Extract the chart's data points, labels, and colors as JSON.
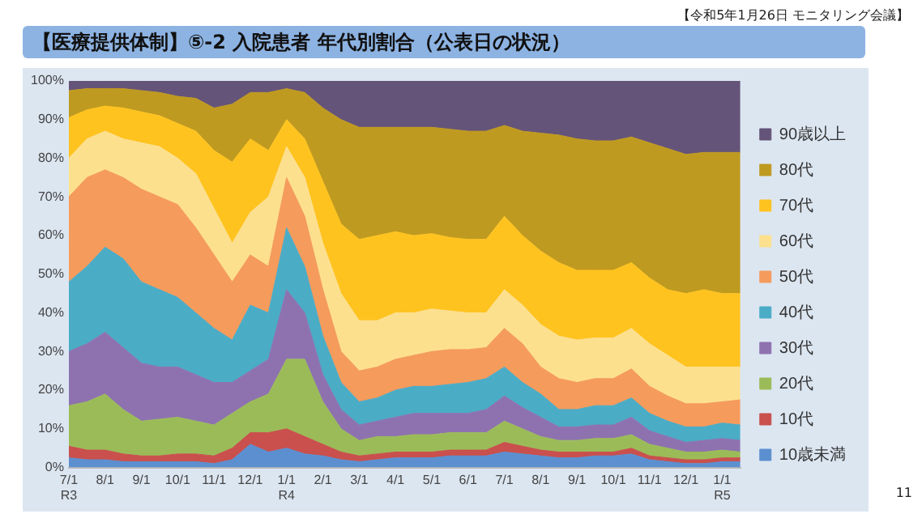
{
  "chart_data": {
    "type": "area",
    "stacked": true,
    "title": "【医療提供体制】⑤-2 入院患者 年代別割合（公表日の状況）",
    "annotations": [
      "【令和5年1月26日 モニタリング会議】",
      "11"
    ],
    "categories": [
      "7/1\nR3",
      null,
      "8/1",
      null,
      "9/1",
      null,
      "10/1",
      null,
      "11/1",
      null,
      "12/1",
      null,
      "1/1\nR4",
      null,
      "2/1",
      null,
      "3/1",
      null,
      "4/1",
      null,
      "5/1",
      null,
      "6/1",
      null,
      "7/1",
      null,
      "8/1",
      null,
      "9/1",
      null,
      "10/1",
      null,
      "11/1",
      null,
      "12/1",
      null,
      "1/1\nR5",
      null
    ],
    "ylim": [
      0,
      100
    ],
    "yticks": [
      {
        "value": 0,
        "label": "0%"
      },
      {
        "value": 10,
        "label": "10%"
      },
      {
        "value": 20,
        "label": "20%"
      },
      {
        "value": 30,
        "label": "30%"
      },
      {
        "value": 40,
        "label": "40%"
      },
      {
        "value": 50,
        "label": "50%"
      },
      {
        "value": 60,
        "label": "60%"
      },
      {
        "value": 70,
        "label": "70%"
      },
      {
        "value": 80,
        "label": "80%"
      },
      {
        "value": 90,
        "label": "90%"
      },
      {
        "value": 100,
        "label": "100%"
      }
    ],
    "grid": false,
    "legend": "right",
    "marker": "none",
    "series": [
      {
        "name": "10歳未満",
        "color": "#5b8fd0",
        "values": [
          2.5,
          2,
          2,
          1.5,
          1.5,
          1.5,
          1.5,
          1.5,
          1,
          2,
          6,
          4,
          5,
          3.5,
          3,
          2,
          1.5,
          2,
          2.5,
          2.5,
          2.5,
          3,
          3,
          3,
          4,
          3.5,
          3,
          2.5,
          2.5,
          3,
          3,
          3.5,
          2,
          1.5,
          1,
          1,
          1.5,
          1.5
        ]
      },
      {
        "name": "10代",
        "color": "#c9504d",
        "values": [
          3,
          2.5,
          2.5,
          2,
          1.5,
          1.5,
          2,
          2,
          2,
          3,
          3,
          5,
          5,
          4.5,
          3,
          2,
          1.5,
          1.5,
          1.5,
          1.5,
          1.5,
          1.5,
          1.5,
          1.5,
          2.5,
          2,
          1.5,
          1.5,
          1.5,
          1,
          1,
          1.5,
          1,
          1,
          1,
          1,
          1,
          1
        ]
      },
      {
        "name": "20代",
        "color": "#9bbb59",
        "values": [
          10.5,
          12.5,
          14.5,
          11.5,
          9,
          9.5,
          9.5,
          8.5,
          8,
          9,
          8,
          10,
          18,
          20,
          11,
          6,
          4,
          4.5,
          4,
          4.5,
          4.5,
          4.5,
          4.5,
          4.5,
          5.5,
          4.5,
          3.5,
          3,
          3,
          3.5,
          3.5,
          3.5,
          3,
          2.5,
          2,
          2,
          2,
          1.5
        ]
      },
      {
        "name": "30代",
        "color": "#8e72b0",
        "values": [
          14,
          15,
          16,
          16,
          15,
          13.5,
          13,
          12,
          11,
          8,
          8,
          9,
          18,
          12,
          7,
          5,
          4,
          4,
          5,
          5.5,
          5.5,
          5,
          5,
          6,
          6.5,
          5.5,
          5,
          3.5,
          3.5,
          3.5,
          3.5,
          4.5,
          3.5,
          3,
          2.5,
          3,
          3,
          3
        ]
      },
      {
        "name": "40代",
        "color": "#4bacc6",
        "values": [
          18,
          20,
          22,
          23,
          21,
          20,
          18,
          16,
          14,
          11,
          17,
          12,
          16,
          12,
          10,
          7,
          6,
          6,
          7,
          7,
          7,
          7.5,
          8,
          8,
          7.5,
          6.5,
          6,
          4.5,
          4.5,
          5,
          5,
          5,
          4.5,
          4,
          4,
          3.5,
          4,
          4
        ]
      },
      {
        "name": "50代",
        "color": "#f59b5c",
        "values": [
          22,
          23,
          20,
          21,
          24,
          24,
          24,
          22,
          19,
          15,
          13,
          12,
          13,
          13,
          12,
          8,
          8,
          8,
          8,
          8,
          9,
          9,
          8.5,
          8,
          10,
          10,
          7,
          8,
          7,
          7,
          7,
          7.5,
          7,
          6.5,
          6,
          6,
          5.5,
          6.5
        ]
      },
      {
        "name": "60代",
        "color": "#fde08e",
        "values": [
          10,
          10,
          10,
          10,
          12,
          13,
          12,
          14,
          12,
          10,
          11,
          18,
          8,
          10,
          12,
          15,
          13,
          12,
          12,
          11,
          11,
          10,
          9.5,
          9,
          10,
          10,
          11,
          11,
          11,
          10.5,
          10.5,
          10.5,
          11,
          10.5,
          9.5,
          9.5,
          9,
          8.5
        ]
      },
      {
        "name": "70代",
        "color": "#ffc320",
        "values": [
          10.5,
          7.5,
          6.5,
          8,
          8,
          8,
          9,
          11,
          15,
          21,
          19,
          12,
          7,
          10,
          16,
          18,
          21,
          22,
          21,
          20,
          19.5,
          19,
          19,
          19,
          19,
          18,
          19,
          19,
          18,
          17.5,
          17.5,
          17,
          17,
          17,
          19,
          20,
          19,
          19
        ]
      },
      {
        "name": "80代",
        "color": "#bf9a20",
        "values": [
          7,
          5.5,
          4.5,
          5,
          5.5,
          6,
          7,
          8.5,
          11,
          15,
          12,
          15,
          8,
          12,
          19,
          27,
          29,
          28,
          27,
          28,
          27.5,
          28,
          28,
          28,
          23.5,
          27,
          30.5,
          33,
          34,
          33.5,
          33.5,
          32.5,
          35,
          36.5,
          36,
          35.5,
          36.5,
          36.5
        ]
      },
      {
        "name": "90歳以上",
        "color": "#655479",
        "values": [
          2.5,
          2,
          2,
          2,
          2.5,
          3,
          4,
          4.5,
          7,
          6,
          3,
          3,
          2,
          3,
          7,
          10,
          12,
          12,
          12,
          12,
          12,
          12.5,
          13,
          13,
          11.5,
          13,
          13.5,
          14,
          15,
          15.5,
          15.5,
          14.5,
          16,
          17.5,
          19,
          18.5,
          18.5,
          18.5
        ]
      }
    ]
  }
}
